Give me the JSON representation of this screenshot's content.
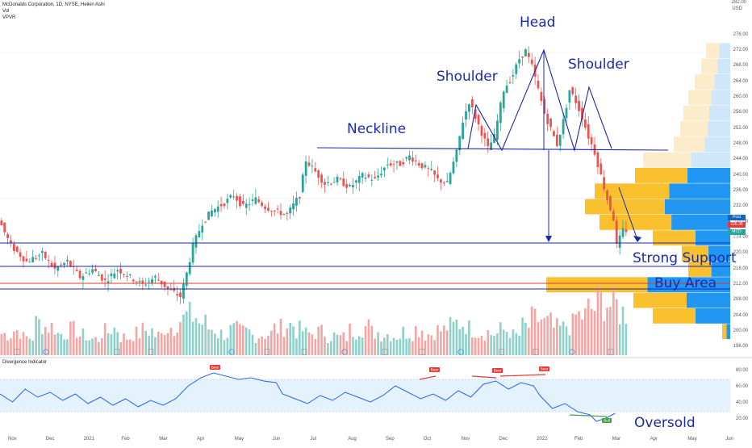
{
  "chart_header": {
    "symbol_line": "McDonalds Corporation, 1D, NYSE, Heikin Ashi",
    "indicator_1": "Vol",
    "indicator_2": "VPVR",
    "currency": "USD"
  },
  "annotations": {
    "head": "Head",
    "left_shoulder": "Shoulder",
    "right_shoulder": "Shoulder",
    "neckline": "Neckline",
    "strong_support": "Strong Support",
    "buy_area": "Buy Area",
    "oversold": "Oversold"
  },
  "price_scale": {
    "top_label": "282.00",
    "ticks": [
      "276.00",
      "272.00",
      "268.00",
      "264.00",
      "260.00",
      "256.00",
      "252.00",
      "248.00",
      "244.00",
      "240.00",
      "236.00",
      "232.00",
      "228.00",
      "224.00",
      "220.00",
      "216.00",
      "212.00",
      "208.00",
      "204.00",
      "200.00",
      "196.00"
    ],
    "post_badge": {
      "label": "Post",
      "value": "226.38",
      "color": "#1565c0"
    },
    "last_badge": {
      "value": "226.38",
      "color": "#e53935"
    },
    "mcd_badge": {
      "label": "MCD",
      "value": "226.14",
      "color": "#26a69a"
    }
  },
  "time_axis": [
    "Nov",
    "Dec",
    "2021",
    "Feb",
    "Mar",
    "Apr",
    "May",
    "Jun",
    "Jul",
    "Aug",
    "Sep",
    "Oct",
    "Nov",
    "Dec",
    "2022",
    "Feb",
    "Mar",
    "Apr",
    "May",
    "Jun"
  ],
  "divergence": {
    "title": "Divergence Indicator",
    "ticks": [
      "80.00",
      "60.00",
      "40.00",
      "20.00"
    ],
    "bear_label": "Bear",
    "bull_label": "Bull"
  },
  "colors": {
    "up": "#26a69a",
    "down": "#ef5350",
    "annotation": "#1a2aa8",
    "support_line": "#1a2aa8",
    "buy_line": "#e53935",
    "vpvr_up": "#2196f3",
    "vpvr_down": "#fbc02d",
    "osc_line": "#2962ff",
    "osc_band": "#e3f2fd"
  },
  "chart_data": {
    "type": "candlestick",
    "title": "McDonalds Corporation, 1D, NYSE, Heikin Ashi",
    "y_unit": "USD",
    "ylim": [
      194,
      284
    ],
    "key_levels": {
      "neckline": 246.5,
      "support_1": 223,
      "support_2": 218,
      "buy_area_top": 213.5,
      "buy_area_bottom": 211.5
    },
    "pattern_points": [
      {
        "name": "left shoulder",
        "date": "Nov",
        "price": 259
      },
      {
        "name": "head",
        "date": "2022",
        "price": 272
      },
      {
        "name": "right shoulder",
        "date": "Feb",
        "price": 262
      }
    ],
    "price_path": [
      [
        0,
        229
      ],
      [
        4,
        222
      ],
      [
        9,
        218
      ],
      [
        14,
        220
      ],
      [
        18,
        216
      ],
      [
        22,
        218
      ],
      [
        26,
        214
      ],
      [
        30,
        216
      ],
      [
        34,
        213
      ],
      [
        38,
        216
      ],
      [
        42,
        214
      ],
      [
        46,
        212
      ],
      [
        50,
        214
      ],
      [
        54,
        211
      ],
      [
        58,
        209
      ],
      [
        60,
        215
      ],
      [
        62,
        222
      ],
      [
        65,
        228
      ],
      [
        68,
        231
      ],
      [
        72,
        233
      ],
      [
        75,
        235
      ],
      [
        78,
        232
      ],
      [
        82,
        234
      ],
      [
        85,
        232
      ],
      [
        88,
        231
      ],
      [
        92,
        230
      ],
      [
        96,
        235
      ],
      [
        98,
        244
      ],
      [
        101,
        241
      ],
      [
        104,
        238
      ],
      [
        108,
        239
      ],
      [
        112,
        237
      ],
      [
        116,
        240
      ],
      [
        120,
        239
      ],
      [
        124,
        243
      ],
      [
        128,
        243
      ],
      [
        131,
        245
      ],
      [
        134,
        243
      ],
      [
        138,
        241
      ],
      [
        140,
        239
      ],
      [
        143,
        238
      ],
      [
        146,
        246
      ],
      [
        148,
        254
      ],
      [
        150,
        259
      ],
      [
        152,
        255
      ],
      [
        154,
        251
      ],
      [
        156,
        247
      ],
      [
        158,
        250
      ],
      [
        161,
        262
      ],
      [
        164,
        266
      ],
      [
        166,
        270
      ],
      [
        168,
        272
      ],
      [
        170,
        268
      ],
      [
        172,
        262
      ],
      [
        174,
        256
      ],
      [
        176,
        252
      ],
      [
        178,
        248
      ],
      [
        180,
        254
      ],
      [
        182,
        262
      ],
      [
        184,
        259
      ],
      [
        186,
        255
      ],
      [
        188,
        250
      ],
      [
        190,
        246
      ],
      [
        192,
        240
      ],
      [
        194,
        234
      ],
      [
        196,
        229
      ],
      [
        197,
        222
      ],
      [
        199,
        226
      ]
    ],
    "volume_path": [
      12,
      14,
      10,
      18,
      16,
      12,
      14,
      11,
      9,
      13,
      15,
      10,
      12,
      14,
      11,
      16,
      20,
      22,
      18,
      15,
      12,
      14,
      13,
      11,
      12,
      15,
      17,
      14,
      12,
      13,
      11,
      10,
      14,
      16,
      13,
      12,
      11,
      13,
      15,
      12,
      14,
      16,
      18,
      15,
      13,
      12,
      14,
      11,
      16,
      20,
      18,
      15,
      17,
      22,
      26,
      30,
      28,
      24
    ],
    "oscillator_path": [
      [
        0,
        52
      ],
      [
        4,
        42
      ],
      [
        8,
        58
      ],
      [
        12,
        48
      ],
      [
        16,
        54
      ],
      [
        20,
        44
      ],
      [
        24,
        52
      ],
      [
        28,
        40
      ],
      [
        32,
        48
      ],
      [
        36,
        38
      ],
      [
        40,
        46
      ],
      [
        44,
        36
      ],
      [
        48,
        44
      ],
      [
        52,
        38
      ],
      [
        56,
        46
      ],
      [
        60,
        62
      ],
      [
        64,
        72
      ],
      [
        68,
        78
      ],
      [
        72,
        74
      ],
      [
        76,
        70
      ],
      [
        80,
        72
      ],
      [
        84,
        68
      ],
      [
        88,
        66
      ],
      [
        90,
        52
      ],
      [
        94,
        46
      ],
      [
        98,
        40
      ],
      [
        102,
        50
      ],
      [
        106,
        44
      ],
      [
        110,
        54
      ],
      [
        114,
        48
      ],
      [
        118,
        42
      ],
      [
        122,
        50
      ],
      [
        126,
        62
      ],
      [
        130,
        54
      ],
      [
        134,
        46
      ],
      [
        138,
        52
      ],
      [
        142,
        44
      ],
      [
        146,
        56
      ],
      [
        150,
        48
      ],
      [
        154,
        64
      ],
      [
        158,
        68
      ],
      [
        162,
        58
      ],
      [
        166,
        66
      ],
      [
        170,
        62
      ],
      [
        172,
        50
      ],
      [
        176,
        34
      ],
      [
        180,
        40
      ],
      [
        184,
        30
      ],
      [
        188,
        26
      ],
      [
        190,
        18
      ],
      [
        193,
        22
      ],
      [
        196,
        28
      ]
    ]
  }
}
